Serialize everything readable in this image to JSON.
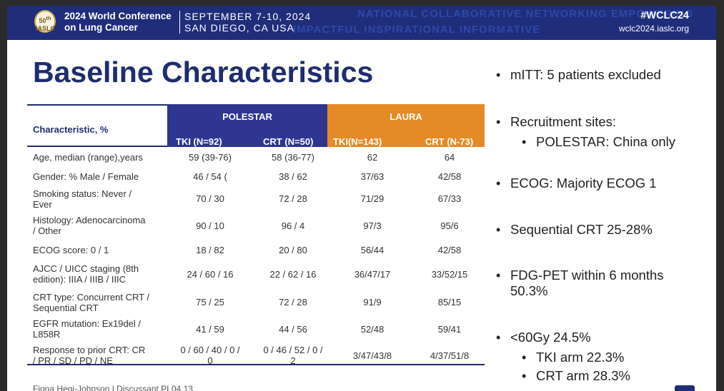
{
  "header": {
    "logo_text": "50th IASLC",
    "conference": [
      "2024 World Conference",
      "on Lung Cancer"
    ],
    "dates": [
      "SEPTEMBER 7-10, 2024",
      "SAN DIEGO, CA USA"
    ],
    "hashtag": "#WCLC24",
    "website": "wclc2024.iaslc.org",
    "watermark_top": "NATIONAL COLLABORATIVE NETWORKING EMPOWERING",
    "watermark_bottom": "IMPACTFUL INSPIRATIONAL INFORMATIVE"
  },
  "title": "Baseline Characteristics",
  "table": {
    "char_header": "Characteristic, %",
    "groups": [
      "POLESTAR",
      "LAURA"
    ],
    "columns": [
      "TKI (N=92)",
      "CRT (N=50)",
      "TKI(N=143)",
      "CRT (N-73)"
    ],
    "rows": [
      {
        "label": [
          "Age, median (range),years"
        ],
        "values": [
          "59 (39-76)",
          "58 (36-77)",
          "62",
          "64"
        ]
      },
      {
        "label": [
          "Gender: % Male / Female"
        ],
        "values": [
          "46 / 54 (",
          "38 / 62",
          "37/63",
          "42/58"
        ]
      },
      {
        "label": [
          "Smoking status: Never /",
          "Ever"
        ],
        "values": [
          "70 / 30",
          "72 / 28",
          "71/29",
          "67/33"
        ]
      },
      {
        "label": [
          "Histology: Adenocarcinoma",
          "/ Other"
        ],
        "values": [
          "90 / 10",
          "96 / 4",
          "97/3",
          "95/6"
        ]
      },
      {
        "label": [
          "ECOG score: 0 / 1"
        ],
        "values": [
          "18 / 82",
          "20 / 80",
          "56/44",
          "42/58"
        ]
      },
      {
        "label": [
          "AJCC / UICC staging (8th",
          "edition): IIIA / IIIB / IIIC"
        ],
        "values": [
          "24 / 60 / 16",
          "22 / 62 / 16",
          "36/47/17",
          "33/52/15"
        ]
      },
      {
        "label": [
          "CRT type: Concurrent CRT /",
          "Sequential CRT"
        ],
        "values": [
          "75 / 25",
          "72 / 28",
          "91/9",
          "85/15"
        ]
      },
      {
        "label": [
          "EGFR mutation: Ex19del /",
          "L858R"
        ],
        "values": [
          "41 / 59",
          "44 / 56",
          "52/48",
          "59/41"
        ]
      },
      {
        "label": [
          "Response to prior CRT: CR",
          "/ PR / SD / PD / NE"
        ],
        "values": [
          "0 / 60 / 40 / 0 / 0",
          "0 / 46 / 52 / 0 / 2",
          "3/47/43/8",
          "4/37/51/8"
        ]
      }
    ]
  },
  "bullets": [
    {
      "text": "mITT: 5 patients excluded"
    },
    {
      "text": "Recruitment sites:"
    },
    {
      "text": "POLESTAR: China only",
      "sub": true
    },
    {
      "text": "ECOG: Majority ECOG 1"
    },
    {
      "text": "Sequential CRT 25-28%"
    },
    {
      "text": "FDG-PET within 6 months 50.3%"
    },
    {
      "text": "<60Gy 24.5%"
    },
    {
      "text": "TKI arm 22.3%",
      "sub": true
    },
    {
      "text": "CRT arm 28.3%",
      "sub": true
    }
  ],
  "footer": "Fiona Hegi-Johnson | Discussant PL04.13",
  "colors": {
    "navy": "#1f2d7a",
    "polestar": "#2e3692",
    "laura": "#e48a26"
  }
}
